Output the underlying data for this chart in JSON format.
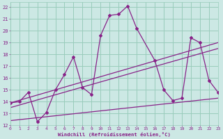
{
  "bg_color": "#cce8e4",
  "line_color": "#882288",
  "grid_color": "#99ccbb",
  "xlabel": "Windchill (Refroidissement éolien,°C)",
  "xlim": [
    0,
    23
  ],
  "ylim": [
    12,
    22.4
  ],
  "yticks": [
    12,
    13,
    14,
    15,
    16,
    17,
    18,
    19,
    20,
    21,
    22
  ],
  "xticks": [
    0,
    1,
    2,
    3,
    4,
    5,
    6,
    7,
    8,
    9,
    10,
    11,
    12,
    13,
    14,
    15,
    16,
    17,
    18,
    19,
    20,
    21,
    22,
    23
  ],
  "main_x": [
    0,
    1,
    2,
    3,
    4,
    5,
    6,
    7,
    8,
    9,
    10,
    11,
    12,
    13,
    14,
    16,
    17,
    18,
    19,
    20,
    21,
    22,
    23
  ],
  "main_y": [
    13.9,
    14.0,
    14.8,
    12.3,
    13.1,
    15.0,
    16.3,
    17.8,
    15.2,
    14.6,
    19.6,
    21.3,
    21.4,
    22.1,
    20.2,
    17.5,
    15.0,
    14.1,
    14.3,
    19.4,
    19.0,
    15.8,
    14.8
  ],
  "trend1_x": [
    0,
    23
  ],
  "trend1_y": [
    13.9,
    19.0
  ],
  "trend2_x": [
    0,
    23
  ],
  "trend2_y": [
    13.5,
    18.5
  ],
  "trend3_x": [
    0,
    23
  ],
  "trend3_y": [
    12.4,
    14.3
  ]
}
